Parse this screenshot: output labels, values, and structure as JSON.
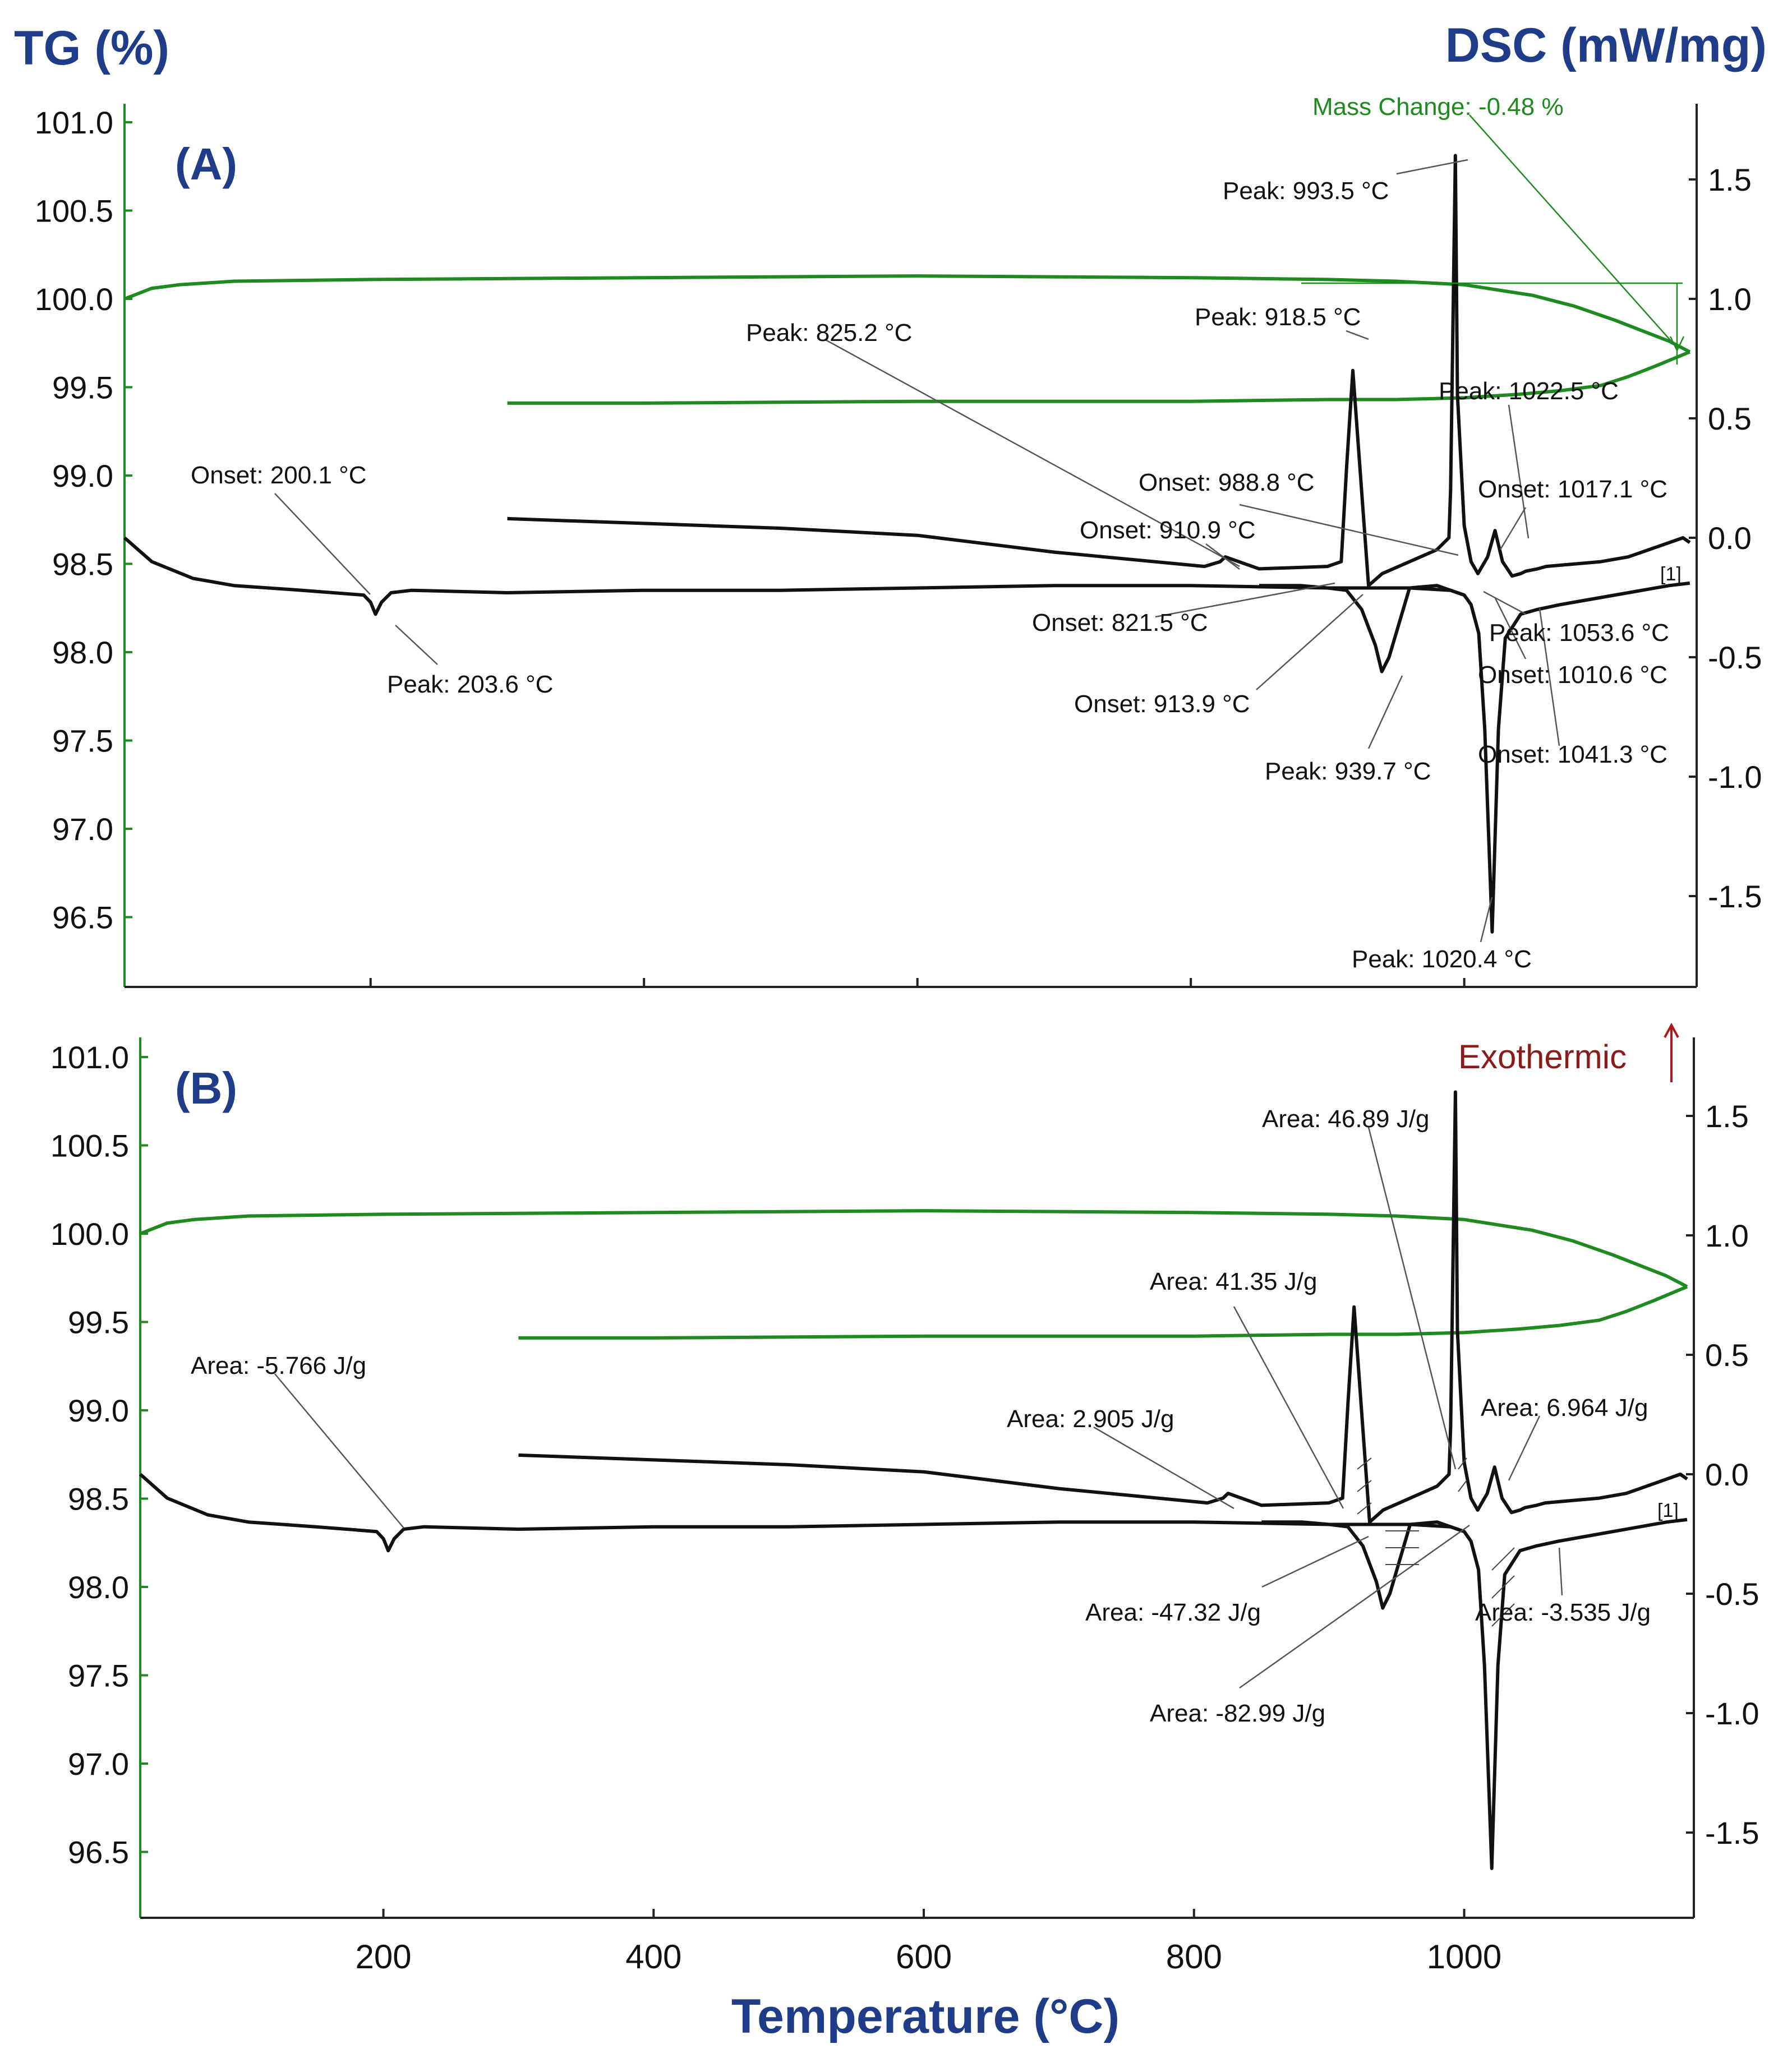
{
  "chart_data": {
    "type": "line",
    "title": "",
    "y_left_label": "TG (%)",
    "y_right_label": "DSC (mW/mg)",
    "xlabel": "Temperature (°C)",
    "x_ticks": [
      "200",
      "400",
      "600",
      "800",
      "1000"
    ],
    "xlim": [
      20,
      1170
    ],
    "tg_ylim": [
      96.2,
      101.3
    ],
    "dsc_ylim": [
      -1.85,
      1.75
    ],
    "tg_ticks": [
      "101.0",
      "100.5",
      "100.0",
      "99.5",
      "99.0",
      "98.5",
      "98.0",
      "97.5",
      "97.0",
      "96.5"
    ],
    "dsc_ticks": [
      "1.5",
      "1.0",
      "0.5",
      "0.0",
      "-0.5",
      "-1.0",
      "-1.5"
    ],
    "colors": {
      "tg": "#1f8a1f",
      "dsc": "#111111",
      "header": "#1f3c88",
      "exo": "#8b1a1a"
    },
    "panels": [
      {
        "label": "(A)",
        "mass_change": "Mass Change: -0.48 %",
        "series": [
          {
            "name": "TG heating",
            "axis": "tg",
            "x": [
              20,
              40,
              60,
              100,
              200,
              400,
              600,
              800,
              900,
              950,
              1000,
              1050,
              1080,
              1110,
              1130,
              1150,
              1165
            ],
            "y": [
              100.0,
              100.06,
              100.08,
              100.1,
              100.11,
              100.12,
              100.13,
              100.12,
              100.11,
              100.1,
              100.08,
              100.02,
              99.96,
              99.88,
              99.82,
              99.76,
              99.7
            ]
          },
          {
            "name": "TG cooling",
            "axis": "tg",
            "x": [
              1165,
              1140,
              1120,
              1100,
              1070,
              1040,
              1000,
              950,
              900,
              800,
              600,
              400,
              300
            ],
            "y": [
              99.7,
              99.62,
              99.56,
              99.51,
              99.48,
              99.46,
              99.44,
              99.43,
              99.43,
              99.42,
              99.42,
              99.41,
              99.41
            ]
          },
          {
            "name": "DSC heating",
            "axis": "dsc",
            "x": [
              20,
              40,
              70,
              100,
              150,
              195,
              200,
              203.6,
              208,
              215,
              230,
              300,
              400,
              500,
              600,
              700,
              800,
              900,
              960,
              990,
              1000,
              1005,
              1010.6,
              1015,
              1020.4,
              1025,
              1030,
              1041.3,
              1053.6,
              1070,
              1100,
              1130,
              1150,
              1165
            ],
            "y": [
              0.0,
              -0.1,
              -0.17,
              -0.2,
              -0.22,
              -0.24,
              -0.27,
              -0.32,
              -0.27,
              -0.23,
              -0.22,
              -0.23,
              -0.22,
              -0.22,
              -0.21,
              -0.2,
              -0.2,
              -0.21,
              -0.21,
              -0.22,
              -0.24,
              -0.28,
              -0.4,
              -0.8,
              -1.65,
              -0.8,
              -0.42,
              -0.32,
              -0.3,
              -0.28,
              -0.25,
              -0.22,
              -0.2,
              -0.19
            ]
          },
          {
            "name": "DSC cooling",
            "axis": "dsc",
            "x": [
              1165,
              1160,
              1145,
              1120,
              1100,
              1060,
              1053.6,
              1045,
              1041.3,
              1035,
              1028,
              1022.5,
              1017.1,
              1010,
              1005,
              1000,
              995,
              993.5,
              990,
              988.8,
              980,
              960,
              940,
              930,
              918.5,
              914,
              910,
              900,
              850,
              825.2,
              821.5,
              810,
              700,
              600,
              500,
              400,
              300
            ],
            "y": [
              -0.02,
              0.0,
              -0.03,
              -0.08,
              -0.1,
              -0.12,
              -0.13,
              -0.14,
              -0.15,
              -0.16,
              -0.1,
              0.03,
              -0.08,
              -0.15,
              -0.1,
              0.05,
              0.6,
              1.6,
              0.2,
              0.0,
              -0.05,
              -0.1,
              -0.15,
              -0.2,
              0.7,
              0.3,
              -0.1,
              -0.12,
              -0.13,
              -0.08,
              -0.1,
              -0.12,
              -0.06,
              0.01,
              0.04,
              0.06,
              0.08
            ]
          },
          {
            "name": "DSC lower cooling branch",
            "axis": "dsc",
            "x": [
              1000,
              990,
              980,
              960,
              945,
              939.7,
              935,
              925,
              913.9,
              900,
              880,
              850
            ],
            "y": [
              -0.24,
              -0.22,
              -0.2,
              -0.21,
              -0.5,
              -0.56,
              -0.45,
              -0.3,
              -0.22,
              -0.21,
              -0.2,
              -0.2
            ]
          }
        ],
        "annotations": [
          "Peak: 993.5 °C",
          "Peak: 918.5 °C",
          "Peak: 825.2 °C",
          "Peak: 1022.5 °C",
          "Onset: 988.8 °C",
          "Onset: 200.1 °C",
          "Onset: 1017.1 °C",
          "Onset: 910.9 °C",
          "Onset: 821.5 °C",
          "Peak: 1053.6 °C",
          "Onset: 1010.6 °C",
          "Peak: 203.6 °C",
          "Onset: 913.9 °C",
          "Peak: 939.7 °C",
          "Onset: 1041.3 °C",
          "Peak: 1020.4 °C"
        ],
        "marker": "[1]"
      },
      {
        "label": "(B)",
        "exothermic": "Exothermic",
        "annotations": [
          "Area: 46.89 J/g",
          "Area: 41.35 J/g",
          "Area: -5.766 J/g",
          "Area: 6.964 J/g",
          "Area: 2.905 J/g",
          "Area: -47.32 J/g",
          "Area: -3.535 J/g",
          "Area: -82.99 J/g"
        ],
        "marker": "[1]"
      }
    ]
  }
}
